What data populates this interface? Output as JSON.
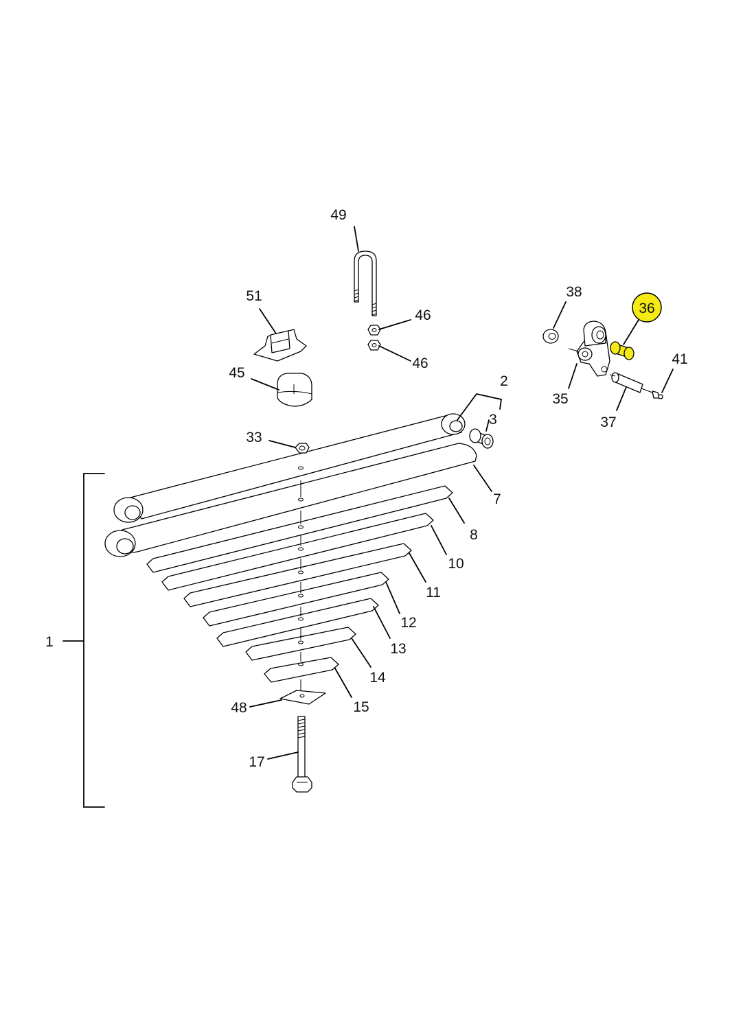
{
  "highlight_color": "#f5ea14",
  "callouts": {
    "c1": "1",
    "c2": "2",
    "c3": "3",
    "c7": "7",
    "c8": "8",
    "c10": "10",
    "c11": "11",
    "c12": "12",
    "c13": "13",
    "c14": "14",
    "c15": "15",
    "c17": "17",
    "c33": "33",
    "c35": "35",
    "c36": "36",
    "c37": "37",
    "c38": "38",
    "c41": "41",
    "c45": "45",
    "c46a": "46",
    "c46b": "46",
    "c48": "48",
    "c49": "49",
    "c51": "51"
  }
}
